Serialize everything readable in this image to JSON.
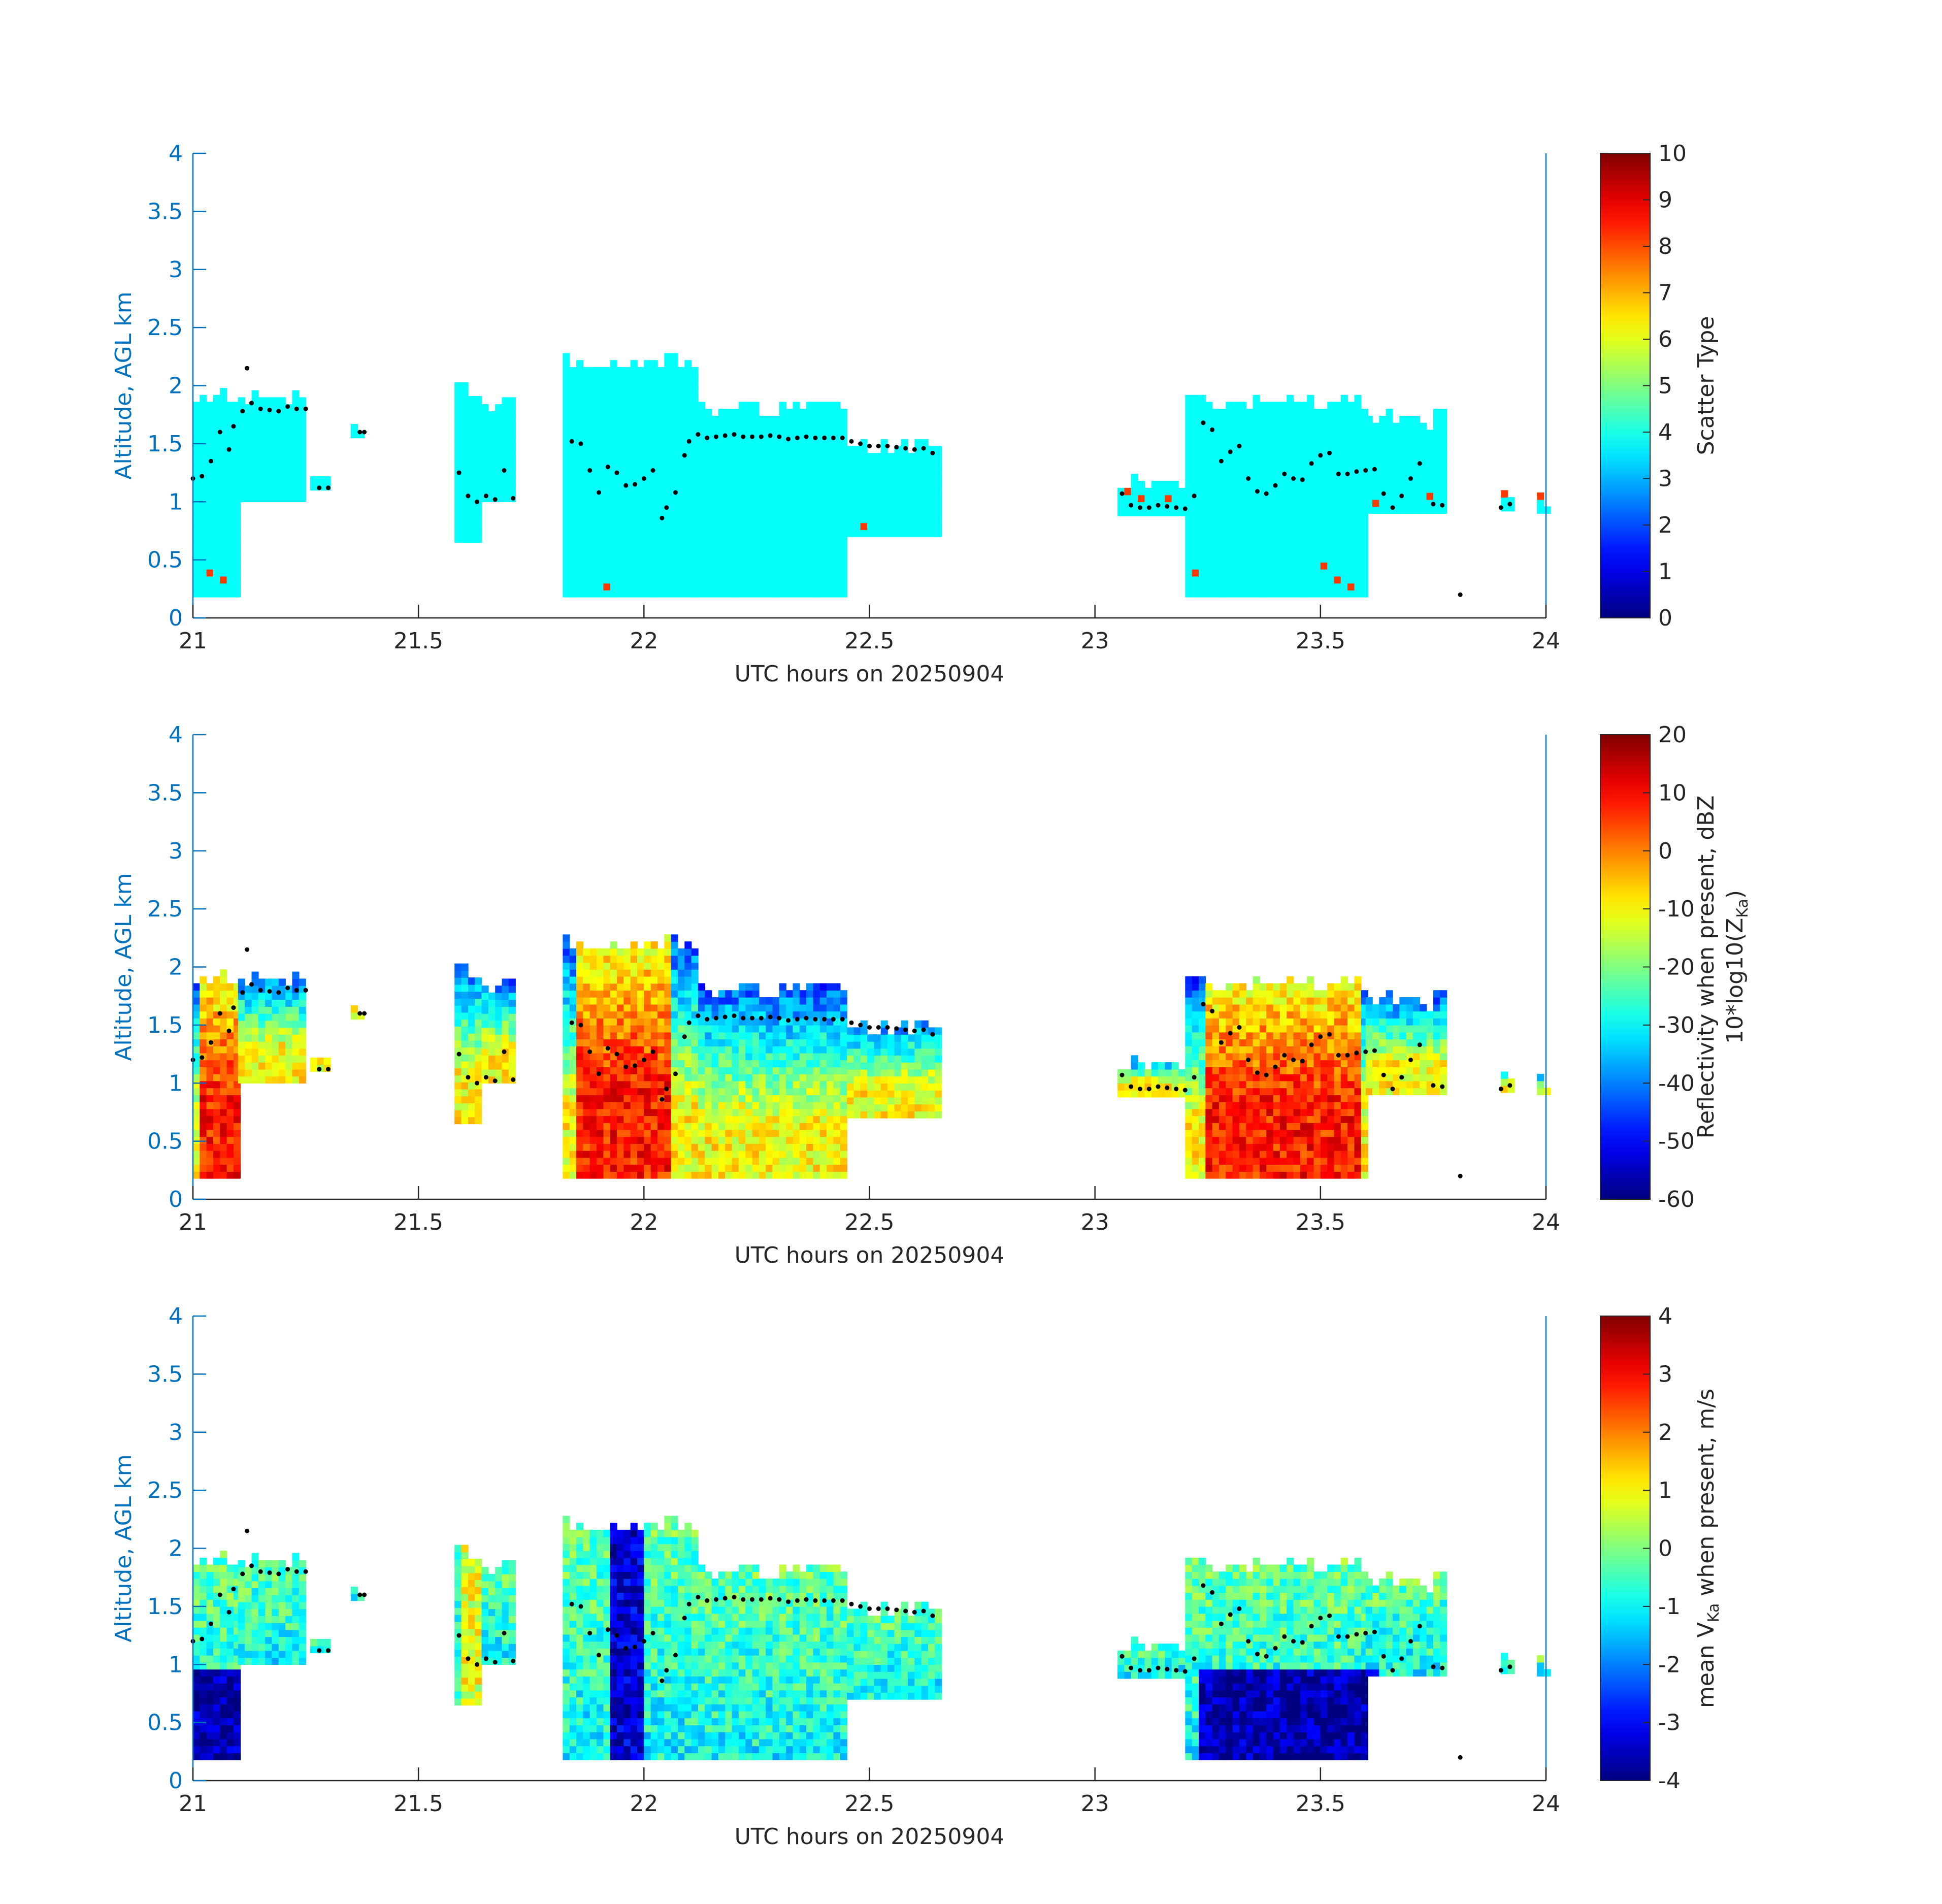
{
  "figure": {
    "panels": [
      {
        "ylabel": "Altitude, AGL km",
        "xlabel": "UTC hours on 20250904",
        "colorbar_label": [
          "Scatter Type"
        ]
      },
      {
        "ylabel": "Altitude, AGL km",
        "xlabel": "UTC hours on 20250904",
        "colorbar_label": [
          "Reflectivity when present, dBZ",
          "10*log10(Z",
          "Ka",
          ")"
        ]
      },
      {
        "ylabel": "Altitude, AGL km",
        "xlabel": "UTC hours on 20250904",
        "colorbar_label": [
          "mean V",
          "Ka",
          " when present, m/s"
        ]
      }
    ]
  },
  "chart_data": [
    {
      "type": "heatmap",
      "title": "",
      "xlabel": "UTC hours on 20250904",
      "ylabel": "Altitude, AGL km",
      "xlim": [
        21,
        24
      ],
      "ylim": [
        0,
        4
      ],
      "xticks": [
        21,
        21.5,
        22,
        22.5,
        23,
        23.5,
        24
      ],
      "yticks": [
        0,
        0.5,
        1,
        1.5,
        2,
        2.5,
        3,
        3.5,
        4
      ],
      "colorbar": {
        "label": "Scatter Type",
        "range": [
          0,
          10
        ],
        "ticks": [
          0,
          1,
          2,
          3,
          4,
          5,
          6,
          7,
          8,
          9,
          10
        ],
        "colormap": "jet"
      },
      "echo_columns": [
        {
          "x0": 21.0,
          "x1": 21.1,
          "bottom": 0.18,
          "top": 1.95
        },
        {
          "x0": 21.1,
          "x1": 21.25,
          "bottom": 1.0,
          "top": 1.95
        },
        {
          "x0": 21.26,
          "x1": 21.3,
          "bottom": 1.1,
          "top": 1.3
        },
        {
          "x0": 21.35,
          "x1": 21.38,
          "bottom": 1.55,
          "top": 1.72
        },
        {
          "x0": 21.58,
          "x1": 21.64,
          "bottom": 0.65,
          "top": 2.05
        },
        {
          "x0": 21.64,
          "x1": 21.71,
          "bottom": 1.0,
          "top": 1.9
        },
        {
          "x0": 21.82,
          "x1": 22.12,
          "bottom": 0.18,
          "top": 2.25
        },
        {
          "x0": 22.12,
          "x1": 22.45,
          "bottom": 0.18,
          "top": 1.85
        },
        {
          "x0": 22.45,
          "x1": 22.65,
          "bottom": 0.7,
          "top": 1.55
        },
        {
          "x0": 23.05,
          "x1": 23.2,
          "bottom": 0.88,
          "top": 1.2
        },
        {
          "x0": 23.2,
          "x1": 23.6,
          "bottom": 0.18,
          "top": 1.9
        },
        {
          "x0": 23.6,
          "x1": 23.77,
          "bottom": 0.9,
          "top": 1.75
        },
        {
          "x0": 23.9,
          "x1": 23.93,
          "bottom": 0.92,
          "top": 1.1
        },
        {
          "x0": 23.98,
          "x1": 24.0,
          "bottom": 0.9,
          "top": 1.05
        }
      ],
      "cloud_base_dots": [
        [
          21.0,
          1.2
        ],
        [
          21.02,
          1.22
        ],
        [
          21.04,
          1.35
        ],
        [
          21.06,
          1.6
        ],
        [
          21.08,
          1.45
        ],
        [
          21.09,
          1.65
        ],
        [
          21.11,
          1.78
        ],
        [
          21.13,
          1.85
        ],
        [
          21.15,
          1.8
        ],
        [
          21.17,
          1.79
        ],
        [
          21.19,
          1.78
        ],
        [
          21.21,
          1.82
        ],
        [
          21.23,
          1.8
        ],
        [
          21.25,
          1.8
        ],
        [
          21.28,
          1.12
        ],
        [
          21.3,
          1.12
        ],
        [
          21.37,
          1.6
        ],
        [
          21.38,
          1.6
        ],
        [
          21.12,
          2.15
        ],
        [
          21.59,
          1.25
        ],
        [
          21.61,
          1.05
        ],
        [
          21.63,
          1.0
        ],
        [
          21.65,
          1.05
        ],
        [
          21.67,
          1.02
        ],
        [
          21.69,
          1.27
        ],
        [
          21.71,
          1.03
        ],
        [
          21.84,
          1.52
        ],
        [
          21.86,
          1.5
        ],
        [
          21.88,
          1.27
        ],
        [
          21.9,
          1.08
        ],
        [
          21.92,
          1.3
        ],
        [
          21.94,
          1.25
        ],
        [
          21.96,
          1.14
        ],
        [
          21.98,
          1.15
        ],
        [
          22.0,
          1.2
        ],
        [
          22.02,
          1.27
        ],
        [
          22.04,
          0.86
        ],
        [
          22.05,
          0.95
        ],
        [
          22.07,
          1.08
        ],
        [
          22.09,
          1.4
        ],
        [
          22.1,
          1.52
        ],
        [
          22.12,
          1.58
        ],
        [
          22.14,
          1.55
        ],
        [
          22.16,
          1.56
        ],
        [
          22.18,
          1.57
        ],
        [
          22.2,
          1.58
        ],
        [
          22.22,
          1.56
        ],
        [
          22.24,
          1.56
        ],
        [
          22.26,
          1.56
        ],
        [
          22.28,
          1.57
        ],
        [
          22.3,
          1.56
        ],
        [
          22.32,
          1.54
        ],
        [
          22.34,
          1.55
        ],
        [
          22.36,
          1.56
        ],
        [
          22.38,
          1.55
        ],
        [
          22.4,
          1.55
        ],
        [
          22.42,
          1.55
        ],
        [
          22.44,
          1.55
        ],
        [
          22.46,
          1.52
        ],
        [
          22.48,
          1.5
        ],
        [
          22.5,
          1.48
        ],
        [
          22.52,
          1.48
        ],
        [
          22.54,
          1.48
        ],
        [
          22.56,
          1.47
        ],
        [
          22.58,
          1.46
        ],
        [
          22.6,
          1.45
        ],
        [
          22.62,
          1.46
        ],
        [
          22.64,
          1.42
        ],
        [
          23.06,
          1.07
        ],
        [
          23.08,
          0.97
        ],
        [
          23.1,
          0.95
        ],
        [
          23.12,
          0.95
        ],
        [
          23.14,
          0.97
        ],
        [
          23.16,
          0.96
        ],
        [
          23.18,
          0.95
        ],
        [
          23.2,
          0.94
        ],
        [
          23.22,
          1.05
        ],
        [
          23.24,
          1.68
        ],
        [
          23.26,
          1.62
        ],
        [
          23.28,
          1.35
        ],
        [
          23.3,
          1.43
        ],
        [
          23.32,
          1.48
        ],
        [
          23.34,
          1.2
        ],
        [
          23.36,
          1.09
        ],
        [
          23.38,
          1.07
        ],
        [
          23.4,
          1.14
        ],
        [
          23.42,
          1.24
        ],
        [
          23.44,
          1.2
        ],
        [
          23.46,
          1.19
        ],
        [
          23.48,
          1.33
        ],
        [
          23.5,
          1.4
        ],
        [
          23.52,
          1.42
        ],
        [
          23.54,
          1.24
        ],
        [
          23.56,
          1.24
        ],
        [
          23.58,
          1.26
        ],
        [
          23.6,
          1.27
        ],
        [
          23.62,
          1.28
        ],
        [
          23.64,
          1.07
        ],
        [
          23.66,
          0.95
        ],
        [
          23.68,
          1.05
        ],
        [
          23.7,
          1.2
        ],
        [
          23.72,
          1.33
        ],
        [
          23.75,
          0.98
        ],
        [
          23.77,
          0.97
        ],
        [
          23.81,
          0.2
        ],
        [
          23.9,
          0.95
        ],
        [
          23.92,
          0.98
        ]
      ]
    },
    {
      "type": "heatmap",
      "title": "",
      "xlabel": "UTC hours on 20250904",
      "ylabel": "Altitude, AGL km",
      "xlim": [
        21,
        24
      ],
      "ylim": [
        0,
        4
      ],
      "xticks": [
        21,
        21.5,
        22,
        22.5,
        23,
        23.5,
        24
      ],
      "yticks": [
        0,
        0.5,
        1,
        1.5,
        2,
        2.5,
        3,
        3.5,
        4
      ],
      "colorbar": {
        "label": "Reflectivity when present, dBZ 10*log10(Z_Ka)",
        "range": [
          -60,
          20
        ],
        "ticks": [
          -60,
          -50,
          -40,
          -30,
          -20,
          -10,
          0,
          10,
          20
        ],
        "colormap": "jet"
      }
    },
    {
      "type": "heatmap",
      "title": "",
      "xlabel": "UTC hours on 20250904",
      "ylabel": "Altitude, AGL km",
      "xlim": [
        21,
        24
      ],
      "ylim": [
        0,
        4
      ],
      "xticks": [
        21,
        21.5,
        22,
        22.5,
        23,
        23.5,
        24
      ],
      "yticks": [
        0,
        0.5,
        1,
        1.5,
        2,
        2.5,
        3,
        3.5,
        4
      ],
      "colorbar": {
        "label": "mean V_Ka when present, m/s",
        "range": [
          -4,
          4
        ],
        "ticks": [
          -4,
          -3,
          -2,
          -1,
          0,
          1,
          2,
          3,
          4
        ],
        "colormap": "jet"
      }
    }
  ]
}
